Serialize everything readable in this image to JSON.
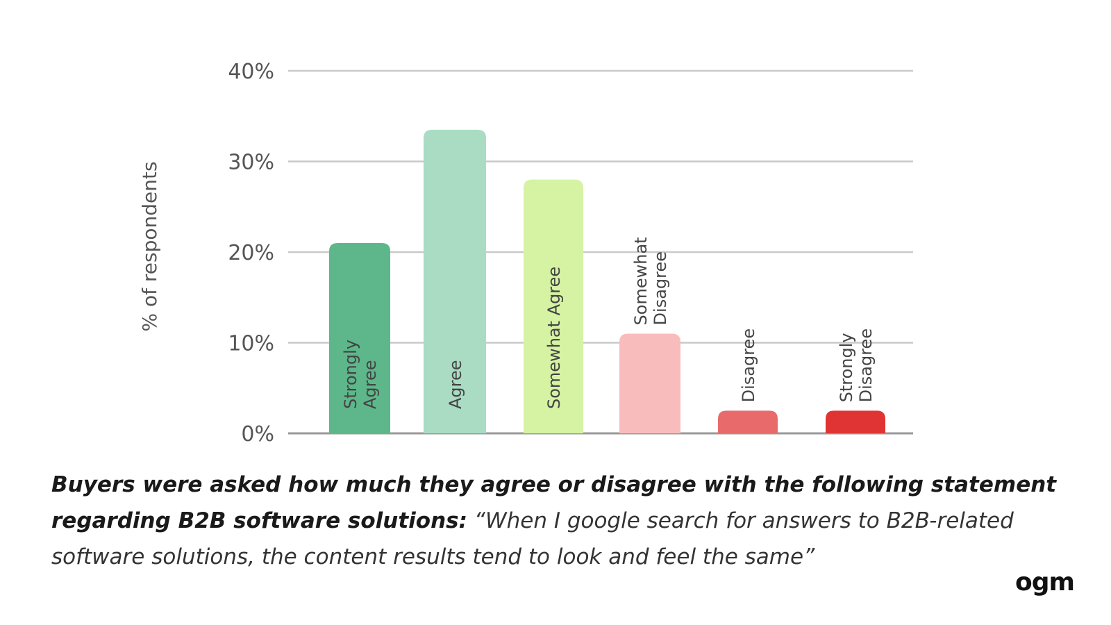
{
  "chart_data": {
    "type": "bar",
    "title": "",
    "xlabel": "",
    "ylabel": "% of respondents",
    "ylim": [
      0,
      40
    ],
    "yticks": [
      "0%",
      "10%",
      "20%",
      "30%",
      "40%"
    ],
    "grid": true,
    "categories": [
      "Strongly Agree",
      "Agree",
      "Somewhat Agree",
      "Somewhat Disagree",
      "Disagree",
      "Strongly Disagree"
    ],
    "label_lines": [
      [
        "Strongly",
        "Agree"
      ],
      [
        "Agree"
      ],
      [
        "Somewhat Agree"
      ],
      [
        "Somewhat",
        "Disagree"
      ],
      [
        "Disagree"
      ],
      [
        "Strongly",
        "Disagree"
      ]
    ],
    "values": [
      21,
      33.5,
      28,
      11,
      2.5,
      2.5
    ],
    "colors": [
      "#5db78a",
      "#a9dcc3",
      "#d5f3a3",
      "#f9bcbc",
      "#e86a6a",
      "#e03434"
    ]
  },
  "caption": {
    "lead": "Buyers were asked how much they agree or disagree with the following statement regarding B2B software solutions:",
    "quote": " “When I google search for answers to B2B-related software solutions, the content results tend to look and feel the same”"
  },
  "logo": "ogm"
}
